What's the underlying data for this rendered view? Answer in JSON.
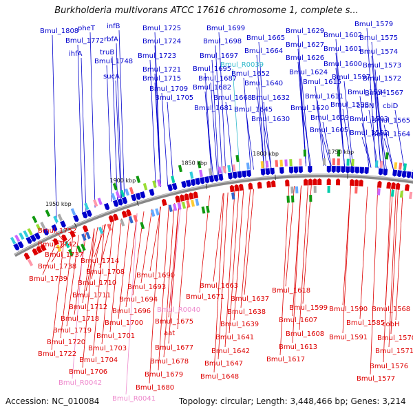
{
  "title": "Burkholderia multivorans ATCC 17616 chromosome 1, complete s...",
  "footer": {
    "accession": "Accession: NC_010084",
    "summary": "Topology: circular; Length: 3,448,466 bp; Genes: 3,214"
  },
  "colors": {
    "forward": "#0000cc",
    "reverse": "#dd0000",
    "rna_forward": "#33bbcc",
    "rna_reverse": "#ee88cc",
    "backbone": "#888888",
    "tick": "#33aa33"
  },
  "ticks": [
    {
      "label": "1950 kbp"
    },
    {
      "label": "1900 kbp"
    },
    {
      "label": "1850 kbp"
    },
    {
      "label": "1800 kbp"
    },
    {
      "label": "1750 kbp"
    }
  ],
  "forward_labels": [
    {
      "text": "Bmul_1808",
      "type": "gene"
    },
    {
      "text": "pheT",
      "type": "gene"
    },
    {
      "text": "infB",
      "type": "gene"
    },
    {
      "text": "Bmul_1772",
      "type": "gene"
    },
    {
      "text": "rbfA",
      "type": "gene"
    },
    {
      "text": "ihfA",
      "type": "gene"
    },
    {
      "text": "truB",
      "type": "gene"
    },
    {
      "text": "Bmul_1748",
      "type": "gene"
    },
    {
      "text": "sucA",
      "type": "gene"
    },
    {
      "text": "Bmul_1725",
      "type": "gene"
    },
    {
      "text": "Bmul_1724",
      "type": "gene"
    },
    {
      "text": "Bmul_1723",
      "type": "gene"
    },
    {
      "text": "Bmul_1721",
      "type": "gene"
    },
    {
      "text": "Bmul_1715",
      "type": "gene"
    },
    {
      "text": "Bmul_1709",
      "type": "gene"
    },
    {
      "text": "Bmul_1705",
      "type": "gene"
    },
    {
      "text": "Bmul_1699",
      "type": "gene"
    },
    {
      "text": "Bmul_1698",
      "type": "gene"
    },
    {
      "text": "Bmul_1697",
      "type": "gene"
    },
    {
      "text": "Bmul_1695",
      "type": "gene"
    },
    {
      "text": "Bmul_1687",
      "type": "gene"
    },
    {
      "text": "Bmul_1682",
      "type": "gene"
    },
    {
      "text": "Bmul_1681",
      "type": "gene"
    },
    {
      "text": "Bmul_1665",
      "type": "gene"
    },
    {
      "text": "Bmul_1664",
      "type": "gene"
    },
    {
      "text": "Bmul_R0039",
      "type": "rna"
    },
    {
      "text": "Bmul_1652",
      "type": "gene"
    },
    {
      "text": "Bmul_1640",
      "type": "gene"
    },
    {
      "text": "Bmul_1668",
      "type": "gene"
    },
    {
      "text": "Bmul_1645",
      "type": "gene"
    },
    {
      "text": "Bmul_1632",
      "type": "gene"
    },
    {
      "text": "Bmul_1630",
      "type": "gene"
    },
    {
      "text": "Bmul_1629",
      "type": "gene"
    },
    {
      "text": "Bmul_1627",
      "type": "gene"
    },
    {
      "text": "Bmul_1626",
      "type": "gene"
    },
    {
      "text": "Bmul_1624",
      "type": "gene"
    },
    {
      "text": "Bmul_1615",
      "type": "gene"
    },
    {
      "text": "Bmul_1620",
      "type": "gene"
    },
    {
      "text": "Bmul_1611",
      "type": "gene"
    },
    {
      "text": "Bmul_1609",
      "type": "gene"
    },
    {
      "text": "Bmul_1605",
      "type": "gene"
    },
    {
      "text": "Bmul_1602",
      "type": "gene"
    },
    {
      "text": "Bmul_1601",
      "type": "gene"
    },
    {
      "text": "Bmul_1600",
      "type": "gene"
    },
    {
      "text": "Bmul_1598",
      "type": "gene"
    },
    {
      "text": "Bmul_1597",
      "type": "gene"
    },
    {
      "text": "Bmul_1594",
      "type": "gene"
    },
    {
      "text": "Bmul_1593",
      "type": "gene"
    },
    {
      "text": "Bmul_1592",
      "type": "gene"
    },
    {
      "text": "Bmul_1579",
      "type": "gene"
    },
    {
      "text": "Bmul_1575",
      "type": "gene"
    },
    {
      "text": "Bmul_1574",
      "type": "gene"
    },
    {
      "text": "Bmul_1573",
      "type": "gene"
    },
    {
      "text": "Bmul_1572",
      "type": "gene"
    },
    {
      "text": "Bmul_1567",
      "type": "gene"
    },
    {
      "text": "cobN",
      "type": "gene"
    },
    {
      "text": "cbiD",
      "type": "gene"
    },
    {
      "text": "Bmul_1565",
      "type": "gene"
    },
    {
      "text": "Bmul_1564",
      "type": "gene"
    }
  ],
  "reverse_labels": [
    {
      "text": "Bmul_1752",
      "type": "gene"
    },
    {
      "text": "Bmul_1742",
      "type": "gene"
    },
    {
      "text": "Bmul_1737",
      "type": "gene"
    },
    {
      "text": "Bmul_1738",
      "type": "gene"
    },
    {
      "text": "Bmul_1739",
      "type": "gene"
    },
    {
      "text": "Bmul_1714",
      "type": "gene"
    },
    {
      "text": "Bmul_1708",
      "type": "gene"
    },
    {
      "text": "Bmul_1710",
      "type": "gene"
    },
    {
      "text": "Bmul_1711",
      "type": "gene"
    },
    {
      "text": "Bmul_1712",
      "type": "gene"
    },
    {
      "text": "Bmul_1718",
      "type": "gene"
    },
    {
      "text": "Bmul_1719",
      "type": "gene"
    },
    {
      "text": "Bmul_1720",
      "type": "gene"
    },
    {
      "text": "Bmul_1722",
      "type": "gene"
    },
    {
      "text": "Bmul_1703",
      "type": "gene"
    },
    {
      "text": "Bmul_1704",
      "type": "gene"
    },
    {
      "text": "Bmul_1706",
      "type": "gene"
    },
    {
      "text": "Bmul_R0042",
      "type": "rna"
    },
    {
      "text": "Bmul_1690",
      "type": "gene"
    },
    {
      "text": "Bmul_1693",
      "type": "gene"
    },
    {
      "text": "Bmul_1694",
      "type": "gene"
    },
    {
      "text": "Bmul_1696",
      "type": "gene"
    },
    {
      "text": "Bmul_1700",
      "type": "gene"
    },
    {
      "text": "Bmul_1701",
      "type": "gene"
    },
    {
      "text": "Bmul_R0040",
      "type": "rna"
    },
    {
      "text": "Bmul_1675",
      "type": "gene"
    },
    {
      "text": "aat",
      "type": "gene"
    },
    {
      "text": "Bmul_1677",
      "type": "gene"
    },
    {
      "text": "Bmul_1678",
      "type": "gene"
    },
    {
      "text": "Bmul_1679",
      "type": "gene"
    },
    {
      "text": "Bmul_1680",
      "type": "gene"
    },
    {
      "text": "Bmul_R0041",
      "type": "rna"
    },
    {
      "text": "Bmul_1663",
      "type": "gene"
    },
    {
      "text": "Bmul_1671",
      "type": "gene"
    },
    {
      "text": "Bmul_1637",
      "type": "gene"
    },
    {
      "text": "Bmul_1638",
      "type": "gene"
    },
    {
      "text": "Bmul_1639",
      "type": "gene"
    },
    {
      "text": "Bmul_1641",
      "type": "gene"
    },
    {
      "text": "Bmul_1642",
      "type": "gene"
    },
    {
      "text": "Bmul_1647",
      "type": "gene"
    },
    {
      "text": "Bmul_1648",
      "type": "gene"
    },
    {
      "text": "Bmul_1618",
      "type": "gene"
    },
    {
      "text": "Bmul_1599",
      "type": "gene"
    },
    {
      "text": "Bmul_1607",
      "type": "gene"
    },
    {
      "text": "Bmul_1608",
      "type": "gene"
    },
    {
      "text": "Bmul_1613",
      "type": "gene"
    },
    {
      "text": "Bmul_1617",
      "type": "gene"
    },
    {
      "text": "Bmul_1590",
      "type": "gene"
    },
    {
      "text": "Bmul_1585",
      "type": "gene"
    },
    {
      "text": "Bmul_1591",
      "type": "gene"
    },
    {
      "text": "Bmul_1568",
      "type": "gene"
    },
    {
      "text": "cobH",
      "type": "gene"
    },
    {
      "text": "Bmul_1570",
      "type": "gene"
    },
    {
      "text": "Bmul_1571",
      "type": "gene"
    },
    {
      "text": "Bmul_1576",
      "type": "gene"
    },
    {
      "text": "Bmul_1577",
      "type": "gene"
    }
  ]
}
